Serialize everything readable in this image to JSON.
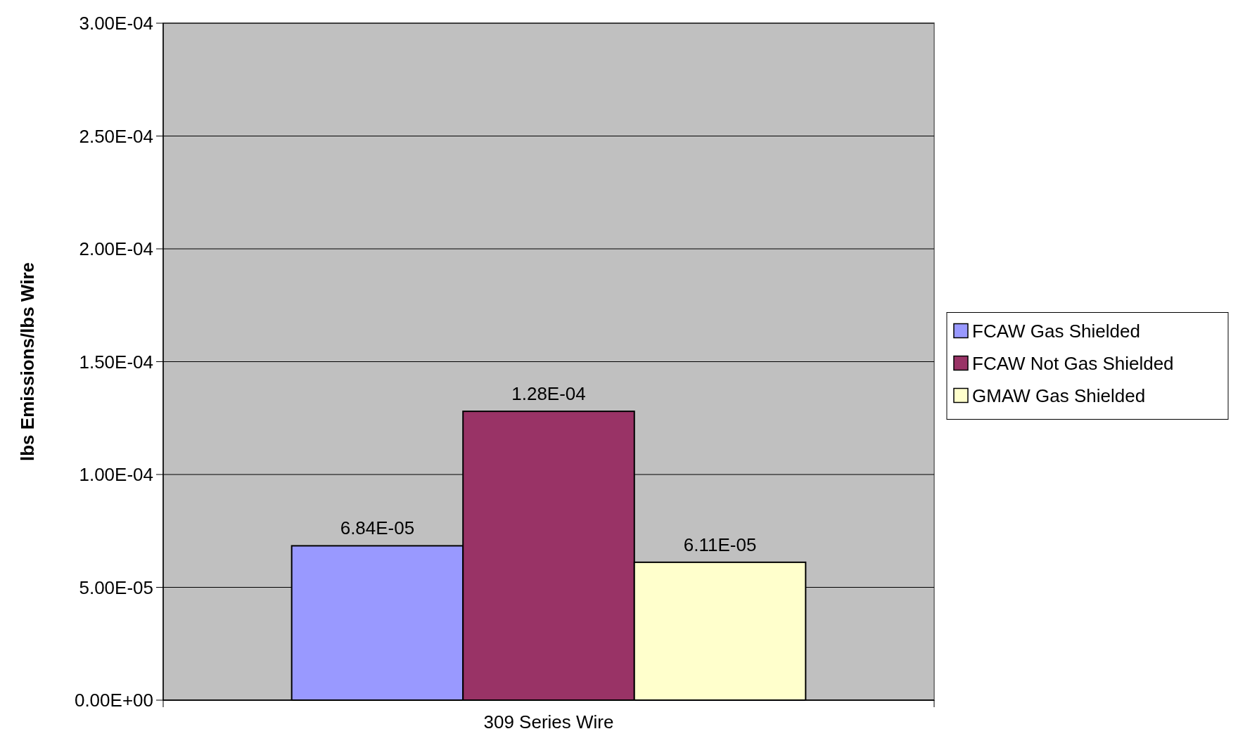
{
  "chart_data": {
    "type": "bar",
    "ylabel": "lbs Emissions/lbs Wire",
    "categories": [
      "309 Series Wire"
    ],
    "series": [
      {
        "name": "FCAW Gas Shielded",
        "color": "#9999ff",
        "values": [
          6.84e-05
        ],
        "value_labels": [
          "6.84E-05"
        ]
      },
      {
        "name": "FCAW Not Gas Shielded",
        "color": "#993366",
        "values": [
          0.000128
        ],
        "value_labels": [
          "1.28E-04"
        ]
      },
      {
        "name": "GMAW Gas Shielded",
        "color": "#ffffcc",
        "values": [
          6.11e-05
        ],
        "value_labels": [
          "6.11E-05"
        ]
      }
    ],
    "ylim": [
      0,
      0.0003
    ],
    "yticks": [
      {
        "value": 0,
        "label": "0.00E+00"
      },
      {
        "value": 5e-05,
        "label": "5.00E-05"
      },
      {
        "value": 0.0001,
        "label": "1.00E-04"
      },
      {
        "value": 0.00015,
        "label": "1.50E-04"
      },
      {
        "value": 0.0002,
        "label": "2.00E-04"
      },
      {
        "value": 0.00025,
        "label": "2.50E-04"
      },
      {
        "value": 0.0003,
        "label": "3.00E-04"
      }
    ],
    "grid": "y",
    "legend": "right"
  }
}
